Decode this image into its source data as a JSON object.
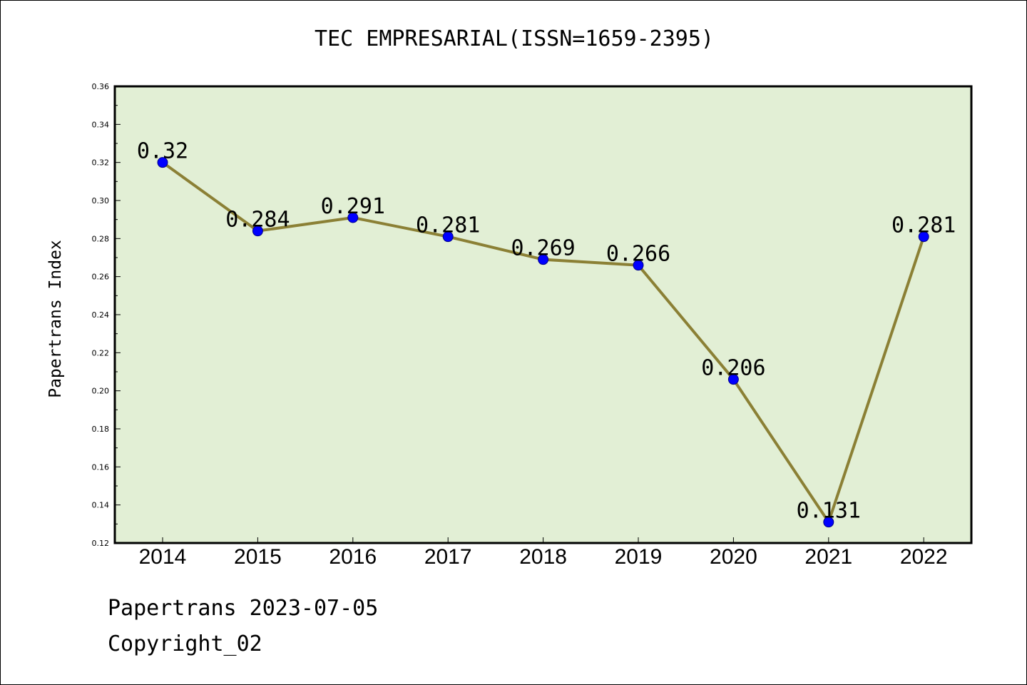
{
  "chart_data": {
    "type": "line",
    "title": "TEC EMPRESARIAL(ISSN=1659-2395)",
    "xlabel": "",
    "ylabel": "Papertrans Index",
    "categories": [
      "2014",
      "2015",
      "2016",
      "2017",
      "2018",
      "2019",
      "2020",
      "2021",
      "2022"
    ],
    "values": [
      0.32,
      0.284,
      0.291,
      0.281,
      0.269,
      0.266,
      0.206,
      0.131,
      0.281
    ],
    "data_labels": [
      "0.32",
      "0.284",
      "0.291",
      "0.281",
      "0.269",
      "0.266",
      "0.206",
      "0.131",
      "0.281"
    ],
    "ylim": [
      0.12,
      0.36
    ],
    "yticks": [
      "0.12",
      "0.14",
      "0.16",
      "0.18",
      "0.20",
      "0.22",
      "0.24",
      "0.26",
      "0.28",
      "0.30",
      "0.32",
      "0.34",
      "0.36"
    ],
    "grid": false,
    "colors": {
      "plot_background": "#e2efd5",
      "line": "#8b8035",
      "marker": "#0000ff"
    }
  },
  "footer": {
    "source": "Papertrans 2023-07-05",
    "copyright": "Copyright_02"
  }
}
